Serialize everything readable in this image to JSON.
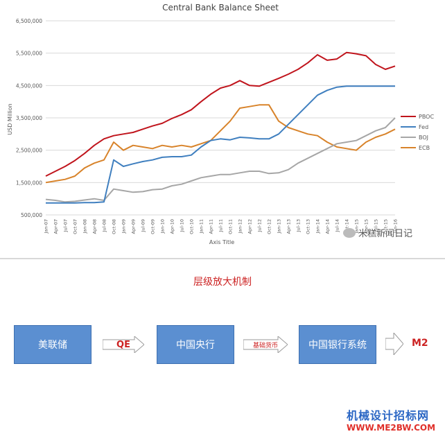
{
  "chart_data": {
    "type": "line",
    "title": "Central Bank Balance Sheet",
    "xlabel": "Axis Title",
    "ylabel": "USD Million",
    "ylim": [
      500000,
      6500000
    ],
    "yticks": [
      "500,000",
      "1,500,000",
      "2,500,000",
      "3,500,000",
      "4,500,000",
      "5,500,000",
      "6,500,000"
    ],
    "ytick_values": [
      500000,
      1500000,
      2500000,
      3500000,
      4500000,
      5500000,
      6500000
    ],
    "xticks": [
      "Jan-07",
      "Apr-07",
      "Jul-07",
      "Oct-07",
      "Jan-08",
      "Apr-08",
      "Jul-08",
      "Oct-08",
      "Jan-09",
      "Apr-09",
      "Jul-09",
      "Oct-09",
      "Jan-10",
      "Apr-10",
      "Jul-10",
      "Oct-10",
      "Jan-11",
      "Apr-11",
      "Jul-11",
      "Oct-11",
      "Jan-12",
      "Apr-12",
      "Jul-12",
      "Oct-12",
      "Jan-13",
      "Apr-13",
      "Jul-13",
      "Oct-13",
      "Jan-14",
      "Apr-14",
      "Jul-14",
      "Oct-14",
      "Jan-15",
      "Apr-15",
      "Jul-15",
      "Oct-15",
      "Jan-16"
    ],
    "grid": "horizontal",
    "legend_position": "right",
    "series": [
      {
        "name": "PBOC",
        "color": "#c0141c",
        "values": [
          1700000,
          1850000,
          2000000,
          2180000,
          2400000,
          2650000,
          2850000,
          2950000,
          3000000,
          3050000,
          3150000,
          3250000,
          3330000,
          3480000,
          3600000,
          3750000,
          4000000,
          4230000,
          4420000,
          4500000,
          4650000,
          4500000,
          4480000,
          4600000,
          4720000,
          4850000,
          5000000,
          5200000,
          5450000,
          5280000,
          5320000,
          5520000,
          5480000,
          5420000,
          5150000,
          5000000,
          5100000
        ]
      },
      {
        "name": "Fed",
        "color": "#3f7fbf",
        "values": [
          870000,
          870000,
          870000,
          870000,
          880000,
          880000,
          900000,
          2200000,
          2000000,
          2080000,
          2150000,
          2200000,
          2280000,
          2300000,
          2300000,
          2350000,
          2600000,
          2800000,
          2850000,
          2820000,
          2900000,
          2880000,
          2850000,
          2850000,
          3000000,
          3300000,
          3600000,
          3900000,
          4200000,
          4350000,
          4450000,
          4480000,
          4480000,
          4480000,
          4480000,
          4480000,
          4480000
        ]
      },
      {
        "name": "BOJ",
        "color": "#a6a6a6",
        "values": [
          980000,
          950000,
          900000,
          920000,
          960000,
          1000000,
          950000,
          1300000,
          1250000,
          1200000,
          1220000,
          1280000,
          1300000,
          1400000,
          1450000,
          1550000,
          1650000,
          1700000,
          1750000,
          1750000,
          1800000,
          1850000,
          1850000,
          1780000,
          1800000,
          1900000,
          2100000,
          2250000,
          2400000,
          2550000,
          2700000,
          2750000,
          2800000,
          2950000,
          3100000,
          3200000,
          3500000
        ]
      },
      {
        "name": "ECB",
        "color": "#d8832a",
        "values": [
          1500000,
          1550000,
          1600000,
          1700000,
          1950000,
          2100000,
          2200000,
          2750000,
          2500000,
          2650000,
          2600000,
          2550000,
          2650000,
          2600000,
          2650000,
          2600000,
          2700000,
          2800000,
          3100000,
          3400000,
          3800000,
          3850000,
          3900000,
          3900000,
          3400000,
          3200000,
          3100000,
          3000000,
          2950000,
          2750000,
          2600000,
          2550000,
          2500000,
          2750000,
          2900000,
          3000000,
          3150000
        ]
      }
    ]
  },
  "diagram": {
    "title": "层级放大机制",
    "boxes": [
      "美联储",
      "中国央行",
      "中国银行系统"
    ],
    "arrows": [
      "QE",
      "基础货币"
    ],
    "end_label": "M2"
  },
  "watermarks": {
    "wechat": "米糕新闻日记",
    "site_cn": "机械设计招标网",
    "site_url": "WWW.ME2BW.COM"
  }
}
